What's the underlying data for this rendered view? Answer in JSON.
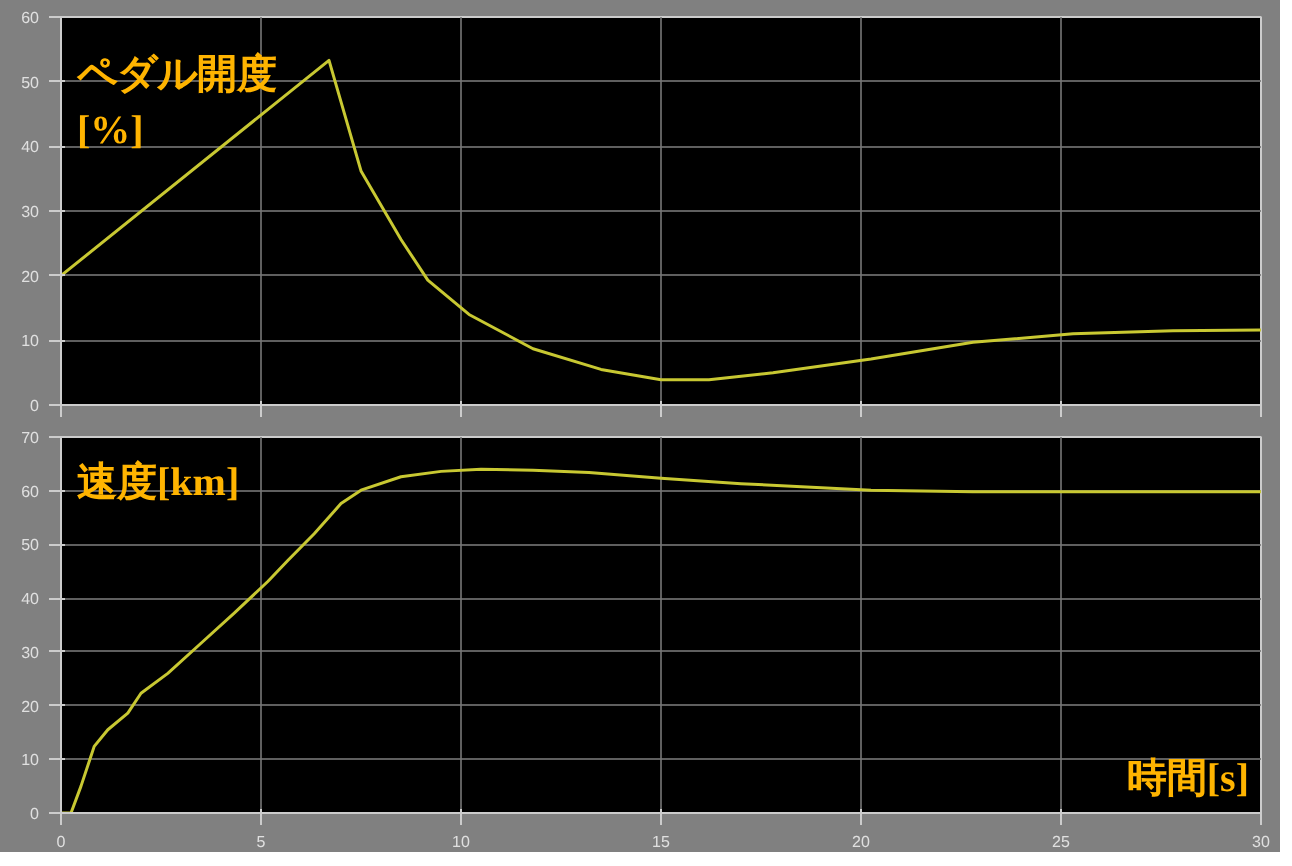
{
  "chart_data": [
    {
      "type": "line",
      "ylabel": "ペダル開度\n[%]",
      "xlim": [
        0,
        30
      ],
      "ylim": [
        0,
        60
      ],
      "xticks": [
        0,
        5,
        10,
        15,
        20,
        25,
        30
      ],
      "yticks": [
        0,
        10,
        20,
        30,
        40,
        50,
        60
      ],
      "grid": true,
      "tick_labels": "y",
      "series": [
        {
          "color": "#c8c832",
          "x": [
            0,
            6.7,
            7.5,
            8.5,
            9.17,
            10.2,
            11.8,
            13.5,
            15,
            16.2,
            17.8,
            20.25,
            22.8,
            25.3,
            27.8,
            30
          ],
          "values": [
            20,
            53.3,
            36.2,
            25.6,
            19.3,
            14.0,
            8.7,
            5.5,
            3.9,
            3.9,
            5.0,
            7.1,
            9.7,
            11.0,
            11.5,
            11.6
          ]
        }
      ]
    },
    {
      "type": "line",
      "ylabel": "速度[km]",
      "xlabel": "時間[s]",
      "xlim": [
        0,
        30
      ],
      "ylim": [
        0,
        70
      ],
      "xticks": [
        0,
        5,
        10,
        15,
        20,
        25,
        30
      ],
      "yticks": [
        0,
        10,
        20,
        30,
        40,
        50,
        60,
        70
      ],
      "grid": true,
      "series": [
        {
          "color": "#c8c832",
          "x": [
            0,
            0.25,
            0.5,
            0.83,
            1.17,
            1.67,
            2,
            2.67,
            3.5,
            4.33,
            5.17,
            5.67,
            6.33,
            7,
            7.5,
            8.5,
            9.5,
            10.5,
            11.8,
            13.2,
            15,
            17,
            20.25,
            22.8,
            30
          ],
          "values": [
            0,
            0,
            5,
            12.4,
            15.5,
            18.6,
            22.3,
            26,
            31.6,
            37.2,
            43.1,
            47,
            52,
            57.6,
            60.1,
            62.6,
            63.6,
            64,
            63.8,
            63.4,
            62.3,
            61.3,
            60.1,
            59.8,
            59.8
          ]
        }
      ]
    }
  ]
}
